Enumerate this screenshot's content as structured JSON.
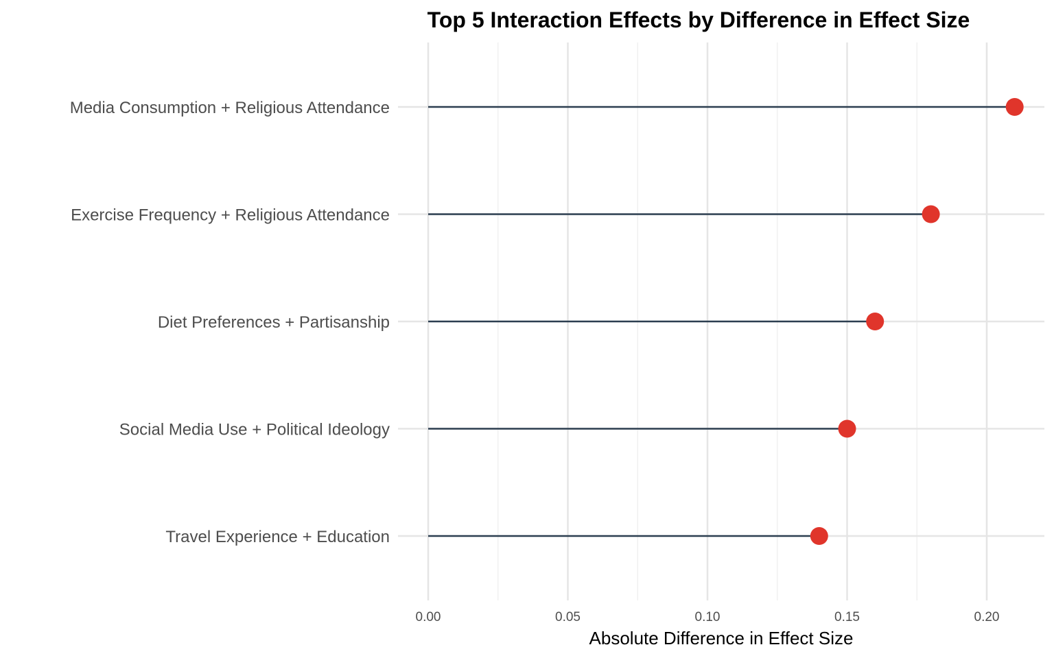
{
  "chart_data": {
    "type": "lollipop",
    "title": "Top 5 Interaction Effects by Difference in Effect Size",
    "xlabel": "Absolute Difference in Effect Size",
    "ylabel": "",
    "xlim": [
      0,
      0.22
    ],
    "x_ticks": [
      0,
      0.05,
      0.1,
      0.15,
      0.2
    ],
    "x_tick_labels": [
      "0.00",
      "0.05",
      "0.10",
      "0.15",
      "0.20"
    ],
    "minor_grid": [
      0.025,
      0.075,
      0.125,
      0.175
    ],
    "grid": true,
    "categories": [
      "Media Consumption + Religious Attendance",
      "Exercise Frequency + Religious Attendance",
      "Diet Preferences + Partisanship",
      "Social Media Use + Political Ideology",
      "Travel Experience + Education"
    ],
    "values": [
      0.21,
      0.18,
      0.16,
      0.15,
      0.14
    ],
    "colors": {
      "stem": "#2c3e50",
      "point": "#e0352b",
      "grid_major": "#e5e5e5",
      "grid_minor": "#f0f0f0"
    }
  }
}
